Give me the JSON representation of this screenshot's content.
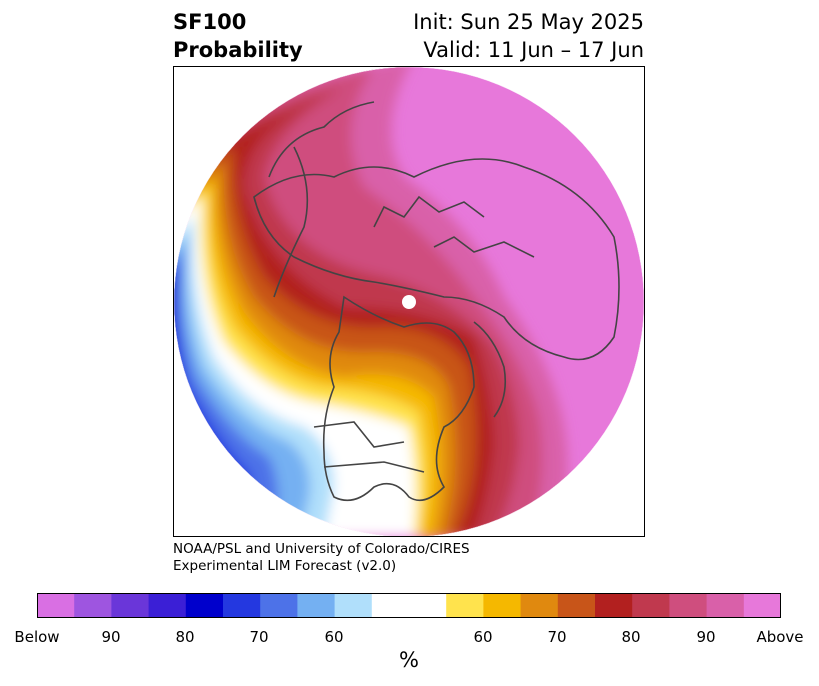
{
  "title": {
    "line1": "SF100",
    "line2": "Probability",
    "init": "Init: Sun 25 May 2025",
    "valid": "Valid: 11 Jun – 17 Jun"
  },
  "credit": {
    "line1": "NOAA/PSL and University of Colorado/CIRES",
    "line2": "Experimental LIM Forecast (v2.0)"
  },
  "colorbar": {
    "unit": "%",
    "ticks": [
      "Below",
      "90",
      "80",
      "70",
      "60",
      "60",
      "70",
      "80",
      "90",
      "Above"
    ],
    "colors": [
      "#d96fe3",
      "#9e55e0",
      "#6a36d9",
      "#3b1fd6",
      "#0000cc",
      "#2438e0",
      "#4d72e8",
      "#74b0f2",
      "#b0dffb",
      "#ffffff",
      "#ffffff",
      "#ffe34d",
      "#f5b800",
      "#e0890f",
      "#c85519",
      "#b2201f",
      "#c0394e",
      "#cf4e7e",
      "#d960a9",
      "#e778da"
    ]
  },
  "map": {
    "projection": "north-polar-stereographic",
    "pole_marker": "north-pole-dot"
  }
}
